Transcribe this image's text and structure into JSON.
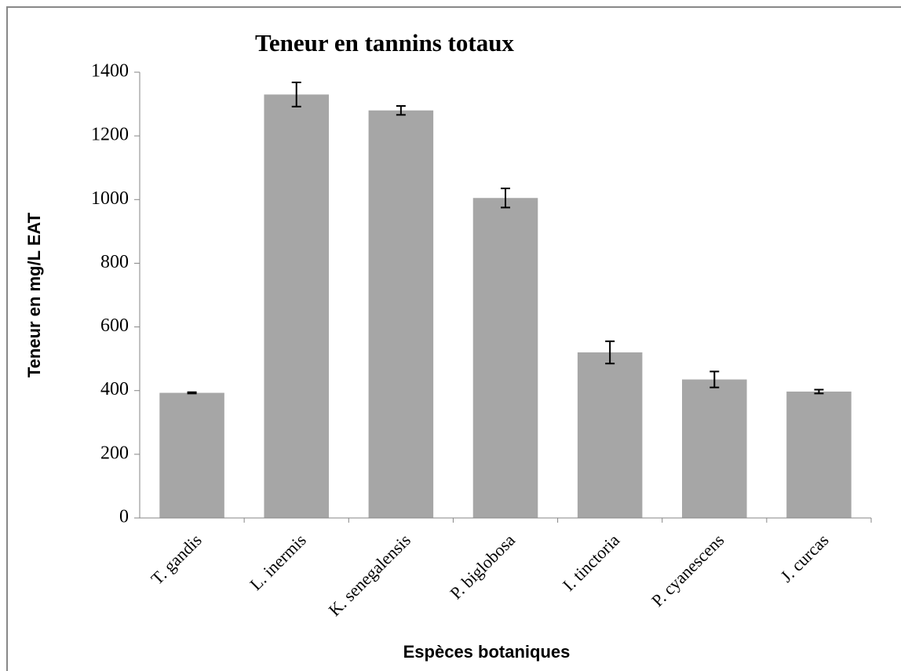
{
  "chart_data": {
    "type": "bar",
    "title": "Teneur en tannins totaux",
    "xlabel": "Espèces botaniques",
    "ylabel": "Teneur en mg/L EAT",
    "categories": [
      "T. gandis",
      "L. inermis",
      "K. senegalensis",
      "P. biglobosa",
      "I. tinctoria",
      "P. cyanescens",
      "J. curcas"
    ],
    "values": [
      393,
      1330,
      1280,
      1005,
      520,
      435,
      397
    ],
    "errors": [
      2,
      38,
      14,
      30,
      35,
      25,
      6
    ],
    "color": "#a6a6a6",
    "ylim": [
      0,
      1400
    ],
    "yticks": [
      0,
      200,
      400,
      600,
      800,
      1000,
      1200,
      1400
    ],
    "grid": false
  }
}
